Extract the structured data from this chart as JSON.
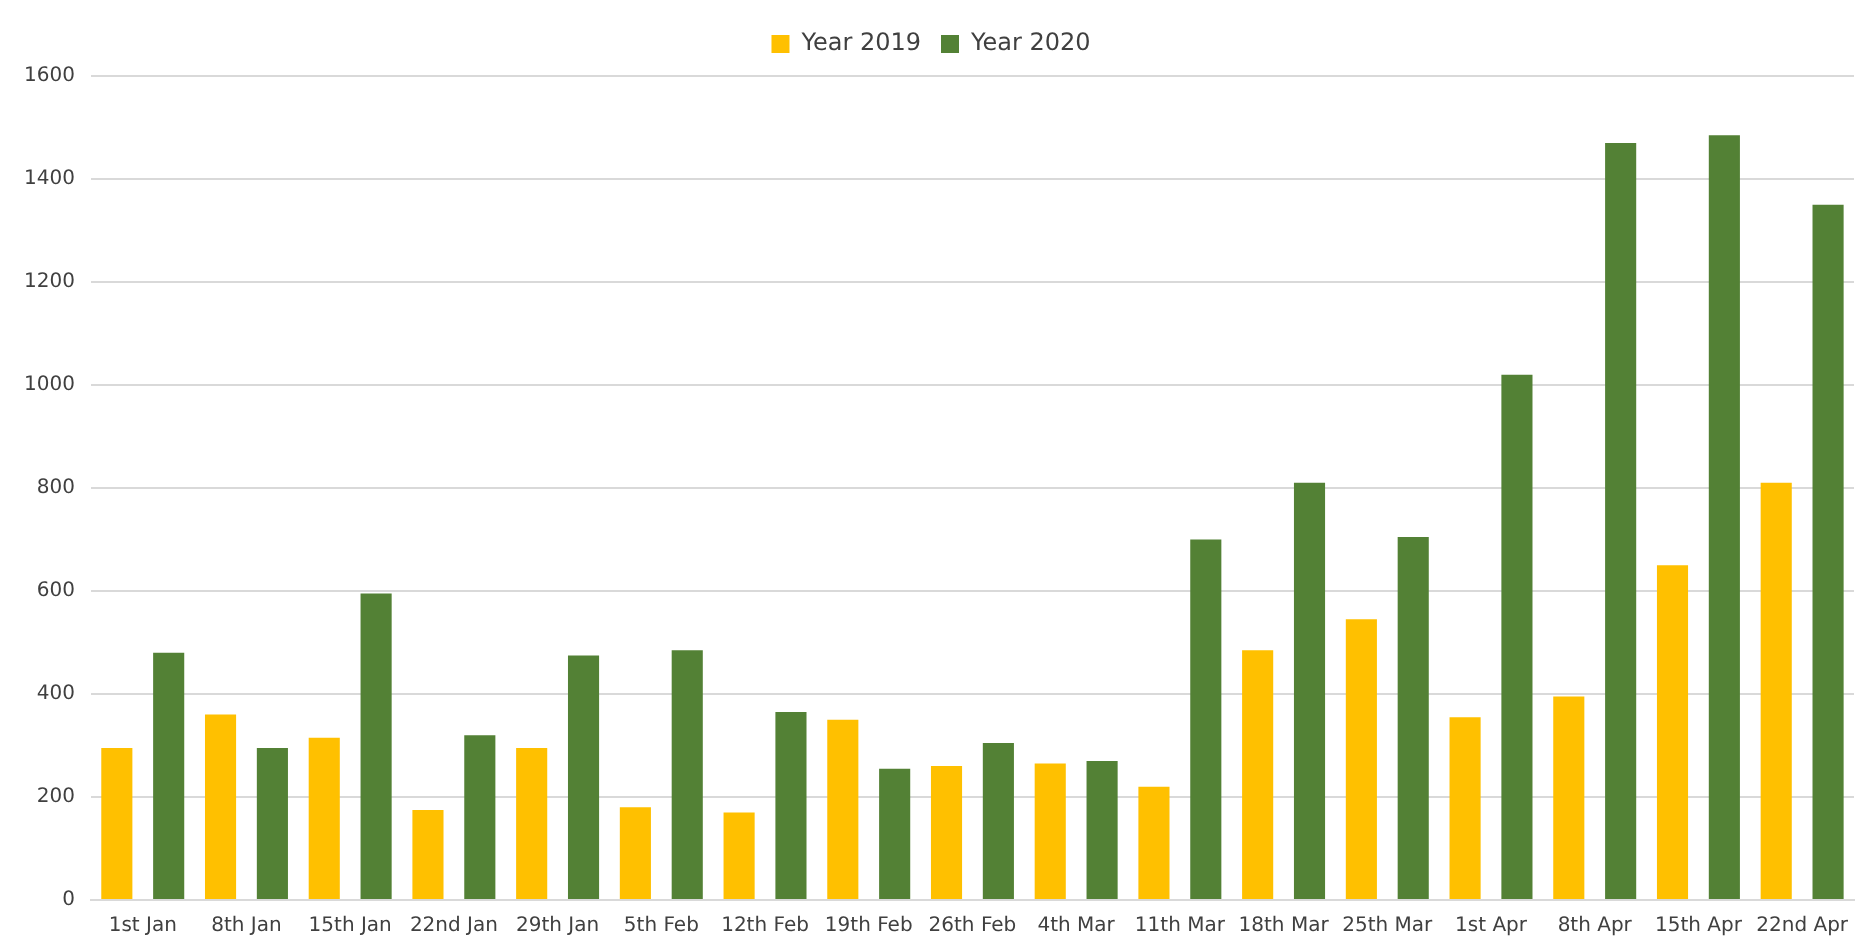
{
  "chart_data": {
    "type": "bar",
    "categories": [
      "1st Jan",
      "8th Jan",
      "15th Jan",
      "22nd Jan",
      "29th Jan",
      "5th Feb",
      "12th Feb",
      "19th Feb",
      "26th Feb",
      "4th Mar",
      "11th Mar",
      "18th Mar",
      "25th Mar",
      "1st Apr",
      "8th Apr",
      "15th Apr",
      "22nd Apr"
    ],
    "series": [
      {
        "name": "Year 2019",
        "color": "#ffc000",
        "values": [
          295,
          360,
          315,
          175,
          295,
          180,
          170,
          350,
          260,
          265,
          220,
          485,
          545,
          355,
          395,
          650,
          810
        ]
      },
      {
        "name": "Year 2020",
        "color": "#538135",
        "values": [
          480,
          295,
          595,
          320,
          475,
          485,
          365,
          255,
          305,
          270,
          700,
          810,
          705,
          1020,
          1470,
          1485,
          1350
        ]
      }
    ],
    "ylim": [
      0,
      1600
    ],
    "yticks": [
      0,
      200,
      400,
      600,
      800,
      1000,
      1200,
      1400,
      1600
    ],
    "grid": "y",
    "legend": "top"
  }
}
